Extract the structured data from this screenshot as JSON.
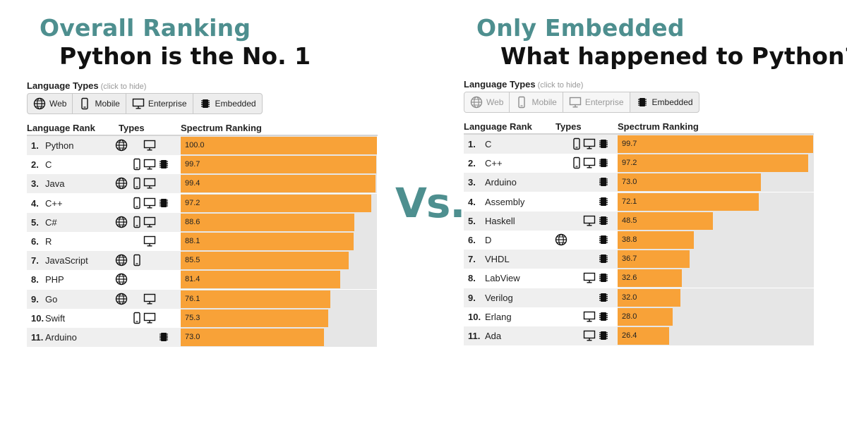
{
  "vs_label": "Vs.",
  "colors": {
    "accent": "#4e8f8f",
    "bar": "#f8a238",
    "track": "#e6e6e6"
  },
  "panels": [
    {
      "heading": "Overall Ranking",
      "subheading": "Python is the No. 1",
      "language_types_label": "Language Types",
      "click_hint": "(click to hide)",
      "type_buttons": [
        {
          "label": "Web",
          "icon": "globe-icon",
          "active": true
        },
        {
          "label": "Mobile",
          "icon": "mobile-icon",
          "active": true
        },
        {
          "label": "Enterprise",
          "icon": "desktop-icon",
          "active": true
        },
        {
          "label": "Embedded",
          "icon": "chip-icon",
          "active": true
        }
      ],
      "col_rank": "Language Rank",
      "col_types": "Types",
      "col_spectrum": "Spectrum Ranking"
    },
    {
      "heading": "Only Embedded",
      "subheading": "What happened to Python?",
      "language_types_label": "Language Types",
      "click_hint": "(click to hide)",
      "type_buttons": [
        {
          "label": "Web",
          "icon": "globe-icon",
          "active": false
        },
        {
          "label": "Mobile",
          "icon": "mobile-icon",
          "active": false
        },
        {
          "label": "Enterprise",
          "icon": "desktop-icon",
          "active": false
        },
        {
          "label": "Embedded",
          "icon": "chip-icon",
          "active": true
        }
      ],
      "col_rank": "Language Rank",
      "col_types": "Types",
      "col_spectrum": "Spectrum Ranking"
    }
  ],
  "chart_data": [
    {
      "type": "bar",
      "title": "Overall Ranking",
      "xlim": [
        0,
        100
      ],
      "rows": [
        {
          "rank": "1.",
          "name": "Python",
          "value": 100.0,
          "label": "100.0",
          "types": [
            "web",
            "enterprise"
          ]
        },
        {
          "rank": "2.",
          "name": "C",
          "value": 99.7,
          "label": "99.7",
          "types": [
            "mobile",
            "enterprise",
            "embedded"
          ]
        },
        {
          "rank": "3.",
          "name": "Java",
          "value": 99.4,
          "label": "99.4",
          "types": [
            "web",
            "mobile",
            "enterprise"
          ]
        },
        {
          "rank": "4.",
          "name": "C++",
          "value": 97.2,
          "label": "97.2",
          "types": [
            "mobile",
            "enterprise",
            "embedded"
          ]
        },
        {
          "rank": "5.",
          "name": "C#",
          "value": 88.6,
          "label": "88.6",
          "types": [
            "web",
            "mobile",
            "enterprise"
          ]
        },
        {
          "rank": "6.",
          "name": "R",
          "value": 88.1,
          "label": "88.1",
          "types": [
            "enterprise"
          ]
        },
        {
          "rank": "7.",
          "name": "JavaScript",
          "value": 85.5,
          "label": "85.5",
          "types": [
            "web",
            "mobile"
          ]
        },
        {
          "rank": "8.",
          "name": "PHP",
          "value": 81.4,
          "label": "81.4",
          "types": [
            "web"
          ]
        },
        {
          "rank": "9.",
          "name": "Go",
          "value": 76.1,
          "label": "76.1",
          "types": [
            "web",
            "enterprise"
          ]
        },
        {
          "rank": "10.",
          "name": "Swift",
          "value": 75.3,
          "label": "75.3",
          "types": [
            "mobile",
            "enterprise"
          ]
        },
        {
          "rank": "11.",
          "name": "Arduino",
          "value": 73.0,
          "label": "73.0",
          "types": [
            "embedded"
          ]
        }
      ]
    },
    {
      "type": "bar",
      "title": "Only Embedded",
      "xlim": [
        0,
        100
      ],
      "rows": [
        {
          "rank": "1.",
          "name": "C",
          "value": 99.7,
          "label": "99.7",
          "types": [
            "mobile",
            "enterprise",
            "embedded"
          ]
        },
        {
          "rank": "2.",
          "name": "C++",
          "value": 97.2,
          "label": "97.2",
          "types": [
            "mobile",
            "enterprise",
            "embedded"
          ]
        },
        {
          "rank": "3.",
          "name": "Arduino",
          "value": 73.0,
          "label": "73.0",
          "types": [
            "embedded"
          ]
        },
        {
          "rank": "4.",
          "name": "Assembly",
          "value": 72.1,
          "label": "72.1",
          "types": [
            "embedded"
          ]
        },
        {
          "rank": "5.",
          "name": "Haskell",
          "value": 48.5,
          "label": "48.5",
          "types": [
            "enterprise",
            "embedded"
          ]
        },
        {
          "rank": "6.",
          "name": "D",
          "value": 38.8,
          "label": "38.8",
          "types": [
            "web",
            "embedded"
          ]
        },
        {
          "rank": "7.",
          "name": "VHDL",
          "value": 36.7,
          "label": "36.7",
          "types": [
            "embedded"
          ]
        },
        {
          "rank": "8.",
          "name": "LabView",
          "value": 32.6,
          "label": "32.6",
          "types": [
            "enterprise",
            "embedded"
          ]
        },
        {
          "rank": "9.",
          "name": "Verilog",
          "value": 32.0,
          "label": "32.0",
          "types": [
            "embedded"
          ]
        },
        {
          "rank": "10.",
          "name": "Erlang",
          "value": 28.0,
          "label": "28.0",
          "types": [
            "enterprise",
            "embedded"
          ]
        },
        {
          "rank": "11.",
          "name": "Ada",
          "value": 26.4,
          "label": "26.4",
          "types": [
            "enterprise",
            "embedded"
          ]
        }
      ]
    }
  ]
}
